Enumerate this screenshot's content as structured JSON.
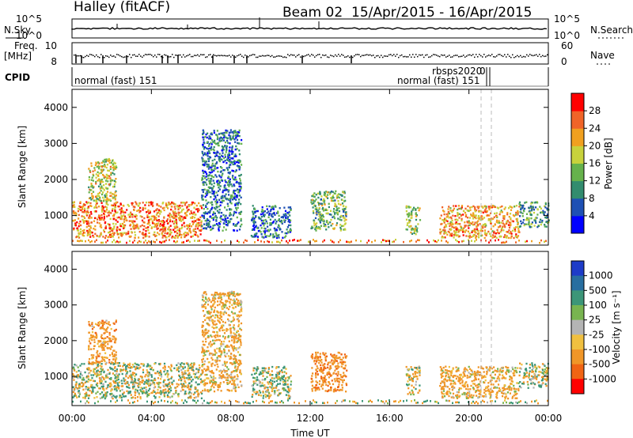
{
  "header": {
    "station": "Halley (fitACF)",
    "beam": "Beam 02",
    "date_range": "15/Apr/2015 - 16/Apr/2015"
  },
  "status": {
    "nsky_label": "N.Sky",
    "nsky_ticks": [
      "10^5",
      "10^0"
    ],
    "nsearch_label": "N.Search",
    "nsearch_ticks": [
      "10^5",
      "10^0"
    ],
    "freq_label": "Freq.",
    "freq_unit": "[MHz]",
    "freq_ticks": [
      "10",
      "8"
    ],
    "nave_label": "Nave",
    "nave_ticks": [
      "60",
      "0"
    ],
    "cpid_label": "CPID",
    "cpid_names": [
      "normal (fast) 151",
      "normal (fast) 151",
      "rbsps2020",
      "0"
    ]
  },
  "axes": {
    "ylabel": "Slant Range [km]",
    "y_ticks": [
      "1000",
      "2000",
      "3000",
      "4000"
    ],
    "x_ticks": [
      "00:00",
      "04:00",
      "08:00",
      "12:00",
      "16:00",
      "20:00",
      "00:00"
    ],
    "xlabel": "Time UT"
  },
  "power_scale": {
    "label": "Power [dB]",
    "ticks": [
      "4",
      "8",
      "12",
      "16",
      "20",
      "24",
      "28"
    ],
    "colors": [
      "#0000ff",
      "#1e50b4",
      "#328c6e",
      "#66b24c",
      "#c8d23c",
      "#f0a020",
      "#f06428",
      "#ff0000"
    ]
  },
  "velocity_scale": {
    "label": "Velocity [m s⁻¹]",
    "ticks": [
      "1000",
      "500",
      "100",
      "25",
      "-25",
      "-100",
      "-500",
      "-1000"
    ],
    "colors": [
      "#1e3cc8",
      "#286ea0",
      "#3c9678",
      "#78b450",
      "#b4b4b4",
      "#f0c040",
      "#f09628",
      "#f06414",
      "#ff0000"
    ]
  },
  "chart_data": [
    {
      "type": "heatmap",
      "title": "Power",
      "xlabel": "Time UT",
      "ylabel": "Slant Range [km]",
      "x_range_hours": [
        0,
        24
      ],
      "ylim_km": [
        180,
        4500
      ],
      "colorbar": {
        "label": "Power [dB]",
        "range": [
          0,
          32
        ]
      },
      "regions": [
        {
          "t0": 0.0,
          "t1": 6.5,
          "r0": 400,
          "r1": 1400,
          "level": 24
        },
        {
          "t0": 0.8,
          "t1": 2.2,
          "r0": 1400,
          "r1": 2600,
          "level": 18
        },
        {
          "t0": 6.5,
          "t1": 8.5,
          "r0": 600,
          "r1": 3400,
          "level": 8
        },
        {
          "t0": 9.0,
          "t1": 11.0,
          "r0": 400,
          "r1": 1300,
          "level": 8
        },
        {
          "t0": 12.0,
          "t1": 13.8,
          "r0": 600,
          "r1": 1700,
          "level": 14
        },
        {
          "t0": 16.8,
          "t1": 17.5,
          "r0": 500,
          "r1": 1300,
          "level": 16
        },
        {
          "t0": 18.5,
          "t1": 22.5,
          "r0": 400,
          "r1": 1300,
          "level": 22
        },
        {
          "t0": 22.5,
          "t1": 24.0,
          "r0": 700,
          "r1": 1400,
          "level": 12
        }
      ]
    },
    {
      "type": "heatmap",
      "title": "Velocity",
      "xlabel": "Time UT",
      "ylabel": "Slant Range [km]",
      "x_range_hours": [
        0,
        24
      ],
      "ylim_km": [
        180,
        4500
      ],
      "colorbar": {
        "label": "Velocity [m s-1]",
        "range": [
          -1000,
          1000
        ]
      },
      "regions": [
        {
          "t0": 0.0,
          "t1": 6.5,
          "r0": 400,
          "r1": 1400,
          "level": 0
        },
        {
          "t0": 0.8,
          "t1": 2.2,
          "r0": 1400,
          "r1": 2600,
          "level": -300
        },
        {
          "t0": 6.5,
          "t1": 8.5,
          "r0": 600,
          "r1": 3400,
          "level": -200
        },
        {
          "t0": 9.0,
          "t1": 11.0,
          "r0": 400,
          "r1": 1300,
          "level": 80
        },
        {
          "t0": 12.0,
          "t1": 13.8,
          "r0": 600,
          "r1": 1700,
          "level": -400
        },
        {
          "t0": 16.8,
          "t1": 17.5,
          "r0": 500,
          "r1": 1300,
          "level": -100
        },
        {
          "t0": 18.5,
          "t1": 22.5,
          "r0": 400,
          "r1": 1300,
          "level": -200
        },
        {
          "t0": 22.5,
          "t1": 24.0,
          "r0": 700,
          "r1": 1400,
          "level": 50
        }
      ]
    }
  ]
}
